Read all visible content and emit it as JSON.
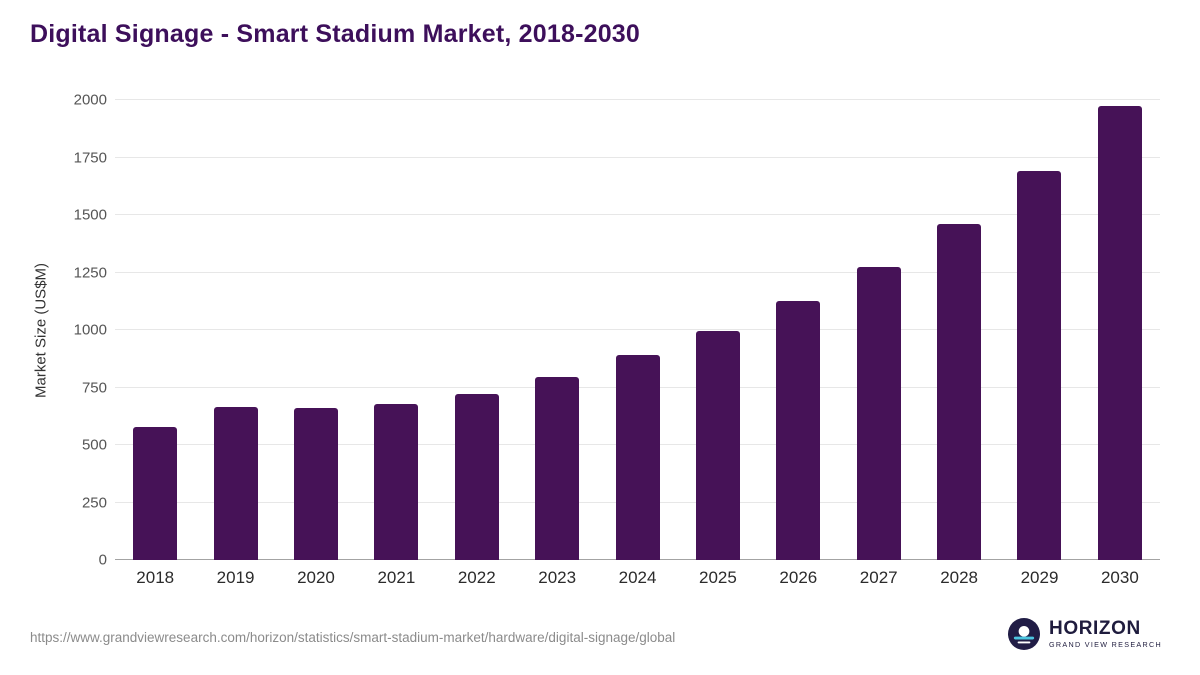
{
  "title": "Digital Signage - Smart Stadium Market, 2018-2030",
  "chart_data": {
    "type": "bar",
    "title": "Digital Signage - Smart Stadium Market, 2018-2030",
    "categories": [
      "2018",
      "2019",
      "2020",
      "2021",
      "2022",
      "2023",
      "2024",
      "2025",
      "2026",
      "2027",
      "2028",
      "2029",
      "2030"
    ],
    "values": [
      580,
      665,
      662,
      680,
      720,
      795,
      890,
      995,
      1125,
      1275,
      1460,
      1690,
      1975
    ],
    "xlabel": "",
    "ylabel": "Market Size (US$M)",
    "ylim": [
      0,
      2000
    ],
    "yticks": [
      0,
      250,
      500,
      750,
      1000,
      1250,
      1500,
      1750,
      2000
    ],
    "bar_color": "#461257",
    "grid": "horizontal",
    "legend": "none"
  },
  "footer": {
    "source_url": "https://www.grandviewresearch.com/horizon/statistics/smart-stadium-market/hardware/digital-signage/global"
  },
  "logo": {
    "name": "HORIZON",
    "subtitle": "GRAND VIEW RESEARCH"
  },
  "colors": {
    "title": "#3d0f5b",
    "bar": "#461257",
    "grid": "#e7e7e7",
    "axis_text": "#555555",
    "accent_cyan": "#4cc5e0",
    "logo_navy": "#211d46"
  }
}
